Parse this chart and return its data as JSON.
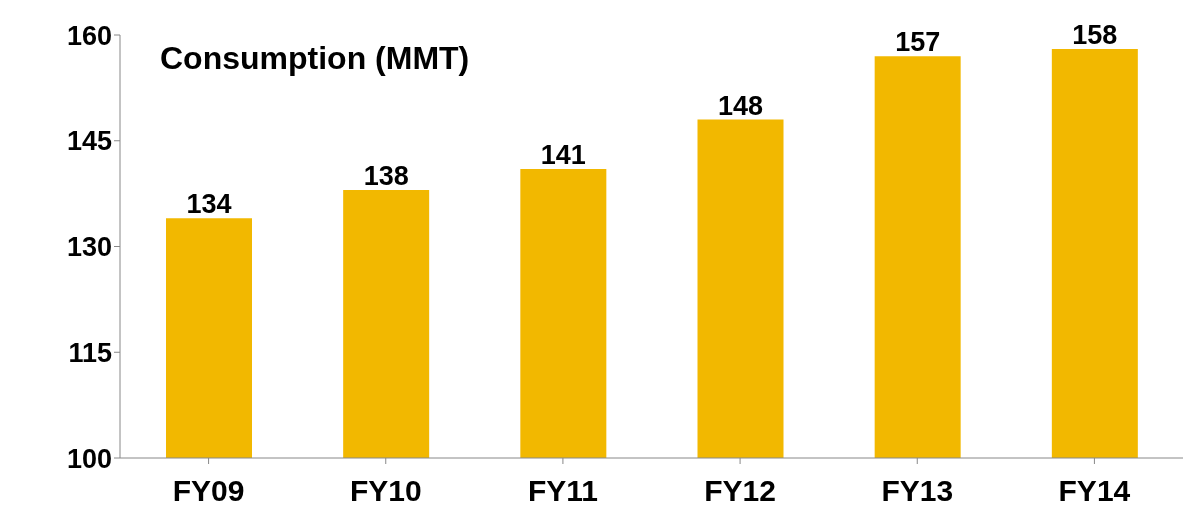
{
  "chart_data": {
    "type": "bar",
    "title": "Consumption (MMT)",
    "categories": [
      "FY09",
      "FY10",
      "FY11",
      "FY12",
      "FY13",
      "FY14"
    ],
    "values": [
      134,
      138,
      141,
      148,
      157,
      158
    ],
    "color": "#f2b800",
    "ylim": [
      100,
      160
    ],
    "yticks": [
      100,
      115,
      130,
      145,
      160
    ],
    "data_labels": true
  }
}
